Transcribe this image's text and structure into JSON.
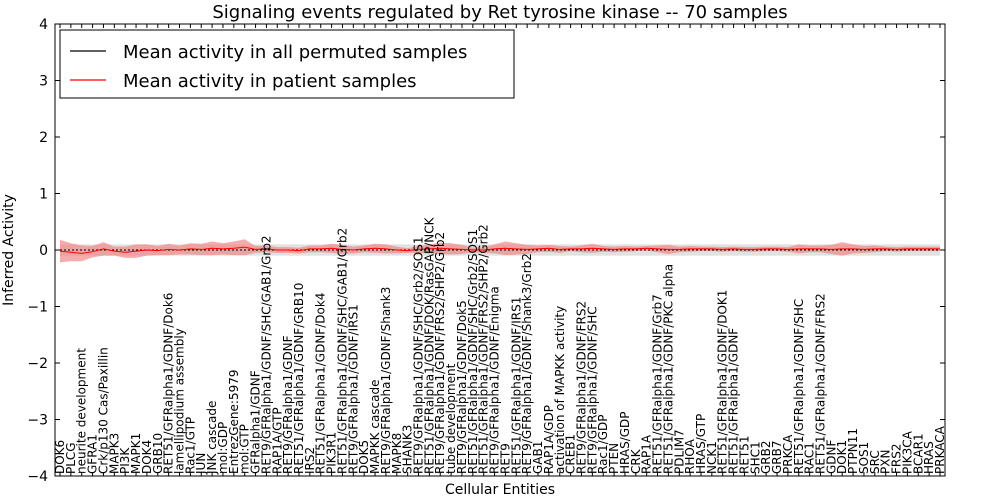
{
  "chart_data": {
    "type": "line",
    "title": "Signaling events regulated by Ret tyrosine kinase -- 70 samples",
    "xlabel": "Cellular Entities",
    "ylabel": "Inferred Activity",
    "ylim": [
      -4,
      4
    ],
    "yticks": [
      "-4",
      "-3",
      "-2",
      "-1",
      "0",
      "1",
      "2",
      "3",
      "4"
    ],
    "legend_position": "top-left",
    "grid": false,
    "colors": {
      "permuted": "#000000",
      "patient": "#ff0000",
      "patient_band": "#f08080",
      "permuted_band": "#c8c8c8",
      "frame": "#000000"
    },
    "categories": [
      "DOK6",
      "PLCG",
      "neurite development",
      "GFRA1",
      "Crk/p130 Cas/Paxillin",
      "MAPK3",
      "PI3K",
      "MAPK1",
      "DOK4",
      "GRB10",
      "RET51/GFRalpha1/GDNF/Dok6",
      "lamellipodium assembly",
      "Rac1/GTP",
      "JUN",
      "JNK cascade",
      "mol:GDP",
      "EntrezGene:5979",
      "mol:GTP",
      "GFRalpha1/GDNF",
      "RET9/GFRalpha1/GDNF/SHC/GAB1/Grb2",
      "RAP1A/GTP",
      "RET9/GFRalpha1/GDNF",
      "RET51/GFRalpha1/GDNF/GRB10",
      "IRS2",
      "RET51/GFRalpha1/GDNF/Dok4",
      "PIK3R1",
      "RET51/GFRalpha1/GDNF/SHC/GAB1/Grb2",
      "RET9/GFRalpha1/GDNF/IRS1",
      "DOK5",
      "MAPKK cascade",
      "RET9/GFRalpha1/GDNF/Shank3",
      "MAPK8",
      "SHANK3",
      "RET9/GFRalpha1/GDNF/SHC/Grb2/SOS1",
      "RET51/GFRalpha1/GDNF/DOK/RasGAP/NCK",
      "RET9/GFRalpha1/GDNF/FRS2/SHP2/Grb2",
      "tube development",
      "RET9/GFRalpha1/GDNF/Dok5",
      "RET51/GFRalpha1/GDNF/SHC/Grb2/SOS1",
      "RET51/GFRalpha1/GDNF/FRS2/SHP2/Grb2",
      "RET9/GFRalpha1/GDNF/Enigma",
      "RET9",
      "RET51/GFRalpha1/GDNF/IRS1",
      "RET9/GFRalpha1/GDNF/Shank3/Grb2",
      "GAB1",
      "RAP1A/GDP",
      "activation of MAPKK activity",
      "CREB1",
      "RET9/GFRalpha1/GDNF/FRS2",
      "RET9/GFRalpha1/GDNF/SHC",
      "Rac1/GDP",
      "PTEN",
      "HRAS/GDP",
      "CRK",
      "RAP1A",
      "RET51/GFRalpha1/GDNF/Grb7",
      "RET51/GFRalpha1/GDNF/PKC alpha",
      "PDLIM7",
      "RHOA",
      "HRAS/GTP",
      "NCK1",
      "RET51/GFRalpha1/GDNF/DOK1",
      "RET51/GFRalpha1/GDNF",
      "RET51",
      "SHC1",
      "GRB2",
      "GRB7",
      "PRKCA",
      "RET51/GFRalpha1/GDNF/SHC",
      "RAC1",
      "RET51/GFRalpha1/GDNF/FRS2",
      "GDNF",
      "DOK1",
      "PTPN11",
      "SOS1",
      "SRC",
      "PXN",
      "FRS2",
      "PIK3CA",
      "BCAR1",
      "HRAS",
      "PRKACA"
    ],
    "series": [
      {
        "name": "Mean activity in all permuted samples",
        "values": [
          0.0,
          0.0,
          0.0,
          0.0,
          0.0,
          0.0,
          0.0,
          0.0,
          0.0,
          0.0,
          0.0,
          0.0,
          0.0,
          0.0,
          0.0,
          0.0,
          0.0,
          0.0,
          0.0,
          0.0,
          0.0,
          0.0,
          0.0,
          0.0,
          0.0,
          0.0,
          0.0,
          0.0,
          0.0,
          0.0,
          0.0,
          0.0,
          0.0,
          0.0,
          0.0,
          0.0,
          0.0,
          0.0,
          0.0,
          0.0,
          0.0,
          0.0,
          0.0,
          0.0,
          0.0,
          0.0,
          0.0,
          0.0,
          0.0,
          0.0,
          0.0,
          0.0,
          0.0,
          0.0,
          0.0,
          0.0,
          0.0,
          0.0,
          0.0,
          0.0,
          0.0,
          0.0,
          0.0,
          0.0,
          0.0,
          0.0,
          0.0,
          0.0,
          0.0,
          0.0,
          0.0,
          0.0,
          0.0,
          0.0,
          0.0,
          0.0,
          0.0,
          0.0,
          0.0,
          0.0,
          0.0,
          0.0
        ]
      },
      {
        "name": "Mean activity in patient samples",
        "values": [
          -0.02,
          -0.04,
          -0.06,
          -0.03,
          0.02,
          -0.02,
          -0.04,
          -0.02,
          0.0,
          -0.01,
          0.01,
          0.0,
          0.02,
          0.01,
          0.03,
          0.02,
          0.03,
          0.05,
          0.01,
          0.02,
          0.0,
          0.0,
          -0.01,
          0.02,
          0.02,
          0.03,
          0.01,
          0.0,
          0.02,
          0.03,
          0.02,
          0.0,
          -0.01,
          0.01,
          0.02,
          0.03,
          0.02,
          0.01,
          0.0,
          0.0,
          0.02,
          0.03,
          0.02,
          0.01,
          0.02,
          0.03,
          0.01,
          0.02,
          0.02,
          0.03,
          0.02,
          0.01,
          0.02,
          0.02,
          0.03,
          0.02,
          0.01,
          0.01,
          0.02,
          0.02,
          0.02,
          0.01,
          0.02,
          0.01,
          0.01,
          0.02,
          0.02,
          0.01,
          0.02,
          0.02,
          0.02,
          0.01,
          0.02,
          0.02,
          0.01,
          0.02,
          0.02,
          0.01,
          0.02,
          0.02,
          0.02,
          0.02
        ]
      }
    ],
    "patient_band_halfwidth": [
      0.2,
      0.16,
      0.14,
      0.1,
      0.12,
      0.08,
      0.1,
      0.12,
      0.1,
      0.08,
      0.1,
      0.08,
      0.1,
      0.1,
      0.12,
      0.1,
      0.12,
      0.14,
      0.06,
      0.06,
      0.05,
      0.05,
      0.05,
      0.06,
      0.06,
      0.08,
      0.08,
      0.06,
      0.06,
      0.08,
      0.08,
      0.06,
      0.04,
      0.06,
      0.08,
      0.1,
      0.1,
      0.08,
      0.04,
      0.05,
      0.08,
      0.12,
      0.1,
      0.08,
      0.06,
      0.06,
      0.06,
      0.04,
      0.06,
      0.08,
      0.05,
      0.05,
      0.05,
      0.04,
      0.04,
      0.06,
      0.08,
      0.05,
      0.05,
      0.04,
      0.04,
      0.04,
      0.04,
      0.04,
      0.04,
      0.04,
      0.04,
      0.04,
      0.08,
      0.06,
      0.06,
      0.08,
      0.12,
      0.08,
      0.06,
      0.06,
      0.04,
      0.04,
      0.04,
      0.04,
      0.04,
      0.04
    ],
    "permuted_band_halfwidth": 0.1
  }
}
